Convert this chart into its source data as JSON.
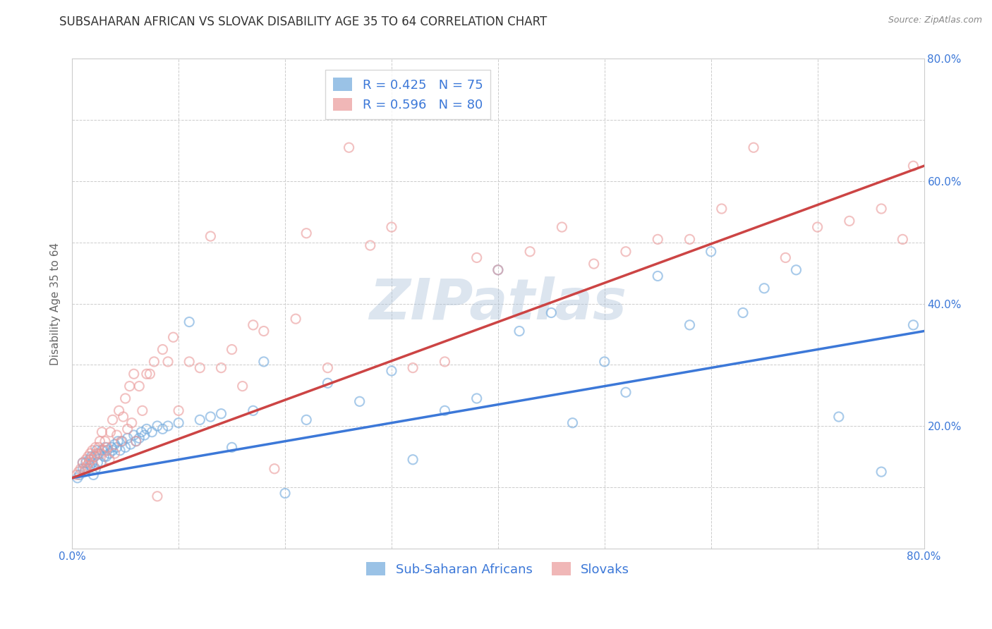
{
  "title": "SUBSAHARAN AFRICAN VS SLOVAK DISABILITY AGE 35 TO 64 CORRELATION CHART",
  "source": "Source: ZipAtlas.com",
  "ylabel": "Disability Age 35 to 64",
  "xlim": [
    0.0,
    0.8
  ],
  "ylim": [
    0.0,
    0.8
  ],
  "xtick_pos": [
    0.0,
    0.1,
    0.2,
    0.3,
    0.4,
    0.5,
    0.6,
    0.7,
    0.8
  ],
  "xtick_labels": [
    "0.0%",
    "",
    "",
    "",
    "",
    "",
    "",
    "",
    "80.0%"
  ],
  "ytick_pos": [
    0.0,
    0.1,
    0.2,
    0.3,
    0.4,
    0.5,
    0.6,
    0.7,
    0.8
  ],
  "ytick_labels": [
    "",
    "",
    "20.0%",
    "",
    "40.0%",
    "",
    "60.0%",
    "",
    "80.0%"
  ],
  "blue_color": "#6fa8dc",
  "pink_color": "#ea9999",
  "blue_line_color": "#3c78d8",
  "pink_line_color": "#cc4444",
  "watermark_color": "#a8bfd8",
  "legend_R_blue": "R = 0.425",
  "legend_N_blue": "N = 75",
  "legend_R_pink": "R = 0.596",
  "legend_N_pink": "N = 80",
  "legend_label_blue": "Sub-Saharan Africans",
  "legend_label_pink": "Slovaks",
  "blue_scatter_x": [
    0.005,
    0.007,
    0.01,
    0.01,
    0.012,
    0.013,
    0.015,
    0.016,
    0.017,
    0.018,
    0.019,
    0.02,
    0.021,
    0.022,
    0.023,
    0.024,
    0.025,
    0.027,
    0.028,
    0.03,
    0.031,
    0.032,
    0.033,
    0.035,
    0.037,
    0.038,
    0.04,
    0.042,
    0.043,
    0.045,
    0.047,
    0.05,
    0.052,
    0.055,
    0.058,
    0.06,
    0.063,
    0.065,
    0.068,
    0.07,
    0.075,
    0.08,
    0.085,
    0.09,
    0.1,
    0.11,
    0.12,
    0.13,
    0.14,
    0.15,
    0.17,
    0.18,
    0.2,
    0.22,
    0.24,
    0.27,
    0.3,
    0.32,
    0.35,
    0.38,
    0.4,
    0.42,
    0.45,
    0.47,
    0.5,
    0.52,
    0.55,
    0.58,
    0.6,
    0.63,
    0.65,
    0.68,
    0.72,
    0.76,
    0.79
  ],
  "blue_scatter_y": [
    0.115,
    0.12,
    0.13,
    0.14,
    0.125,
    0.14,
    0.13,
    0.145,
    0.135,
    0.15,
    0.14,
    0.12,
    0.15,
    0.13,
    0.16,
    0.14,
    0.155,
    0.14,
    0.16,
    0.15,
    0.165,
    0.15,
    0.16,
    0.155,
    0.165,
    0.16,
    0.17,
    0.165,
    0.175,
    0.16,
    0.175,
    0.165,
    0.18,
    0.17,
    0.185,
    0.175,
    0.18,
    0.19,
    0.185,
    0.195,
    0.19,
    0.2,
    0.195,
    0.2,
    0.205,
    0.37,
    0.21,
    0.215,
    0.22,
    0.165,
    0.225,
    0.305,
    0.09,
    0.21,
    0.27,
    0.24,
    0.29,
    0.145,
    0.225,
    0.245,
    0.455,
    0.355,
    0.385,
    0.205,
    0.305,
    0.255,
    0.445,
    0.365,
    0.485,
    0.385,
    0.425,
    0.455,
    0.215,
    0.125,
    0.365
  ],
  "pink_scatter_x": [
    0.004,
    0.006,
    0.008,
    0.01,
    0.012,
    0.013,
    0.014,
    0.015,
    0.016,
    0.017,
    0.018,
    0.019,
    0.02,
    0.021,
    0.022,
    0.023,
    0.025,
    0.026,
    0.027,
    0.028,
    0.03,
    0.031,
    0.033,
    0.035,
    0.036,
    0.038,
    0.04,
    0.042,
    0.044,
    0.046,
    0.048,
    0.05,
    0.052,
    0.054,
    0.056,
    0.058,
    0.06,
    0.063,
    0.066,
    0.07,
    0.073,
    0.077,
    0.08,
    0.085,
    0.09,
    0.095,
    0.1,
    0.11,
    0.12,
    0.13,
    0.14,
    0.15,
    0.16,
    0.17,
    0.18,
    0.19,
    0.21,
    0.22,
    0.24,
    0.26,
    0.28,
    0.3,
    0.32,
    0.35,
    0.38,
    0.4,
    0.43,
    0.46,
    0.49,
    0.52,
    0.55,
    0.58,
    0.61,
    0.64,
    0.67,
    0.7,
    0.73,
    0.76,
    0.78,
    0.79
  ],
  "pink_scatter_y": [
    0.12,
    0.125,
    0.13,
    0.14,
    0.13,
    0.145,
    0.135,
    0.15,
    0.14,
    0.155,
    0.145,
    0.16,
    0.135,
    0.15,
    0.165,
    0.155,
    0.165,
    0.175,
    0.155,
    0.19,
    0.16,
    0.175,
    0.165,
    0.145,
    0.19,
    0.21,
    0.155,
    0.185,
    0.225,
    0.175,
    0.215,
    0.245,
    0.195,
    0.265,
    0.205,
    0.285,
    0.175,
    0.265,
    0.225,
    0.285,
    0.285,
    0.305,
    0.085,
    0.325,
    0.305,
    0.345,
    0.225,
    0.305,
    0.295,
    0.51,
    0.295,
    0.325,
    0.265,
    0.365,
    0.355,
    0.13,
    0.375,
    0.515,
    0.295,
    0.655,
    0.495,
    0.525,
    0.295,
    0.305,
    0.475,
    0.455,
    0.485,
    0.525,
    0.465,
    0.485,
    0.505,
    0.505,
    0.555,
    0.655,
    0.475,
    0.525,
    0.535,
    0.555,
    0.505,
    0.625
  ],
  "blue_line_x": [
    0.0,
    0.8
  ],
  "blue_line_y": [
    0.115,
    0.355
  ],
  "pink_line_x": [
    0.0,
    0.8
  ],
  "pink_line_y": [
    0.115,
    0.625
  ],
  "watermark": "ZIPatlas",
  "background_color": "#ffffff",
  "grid_color": "#cccccc",
  "title_fontsize": 12,
  "axis_label_fontsize": 11,
  "tick_fontsize": 11,
  "legend_fontsize": 13,
  "marker_size": 90,
  "marker_alpha": 0.6
}
